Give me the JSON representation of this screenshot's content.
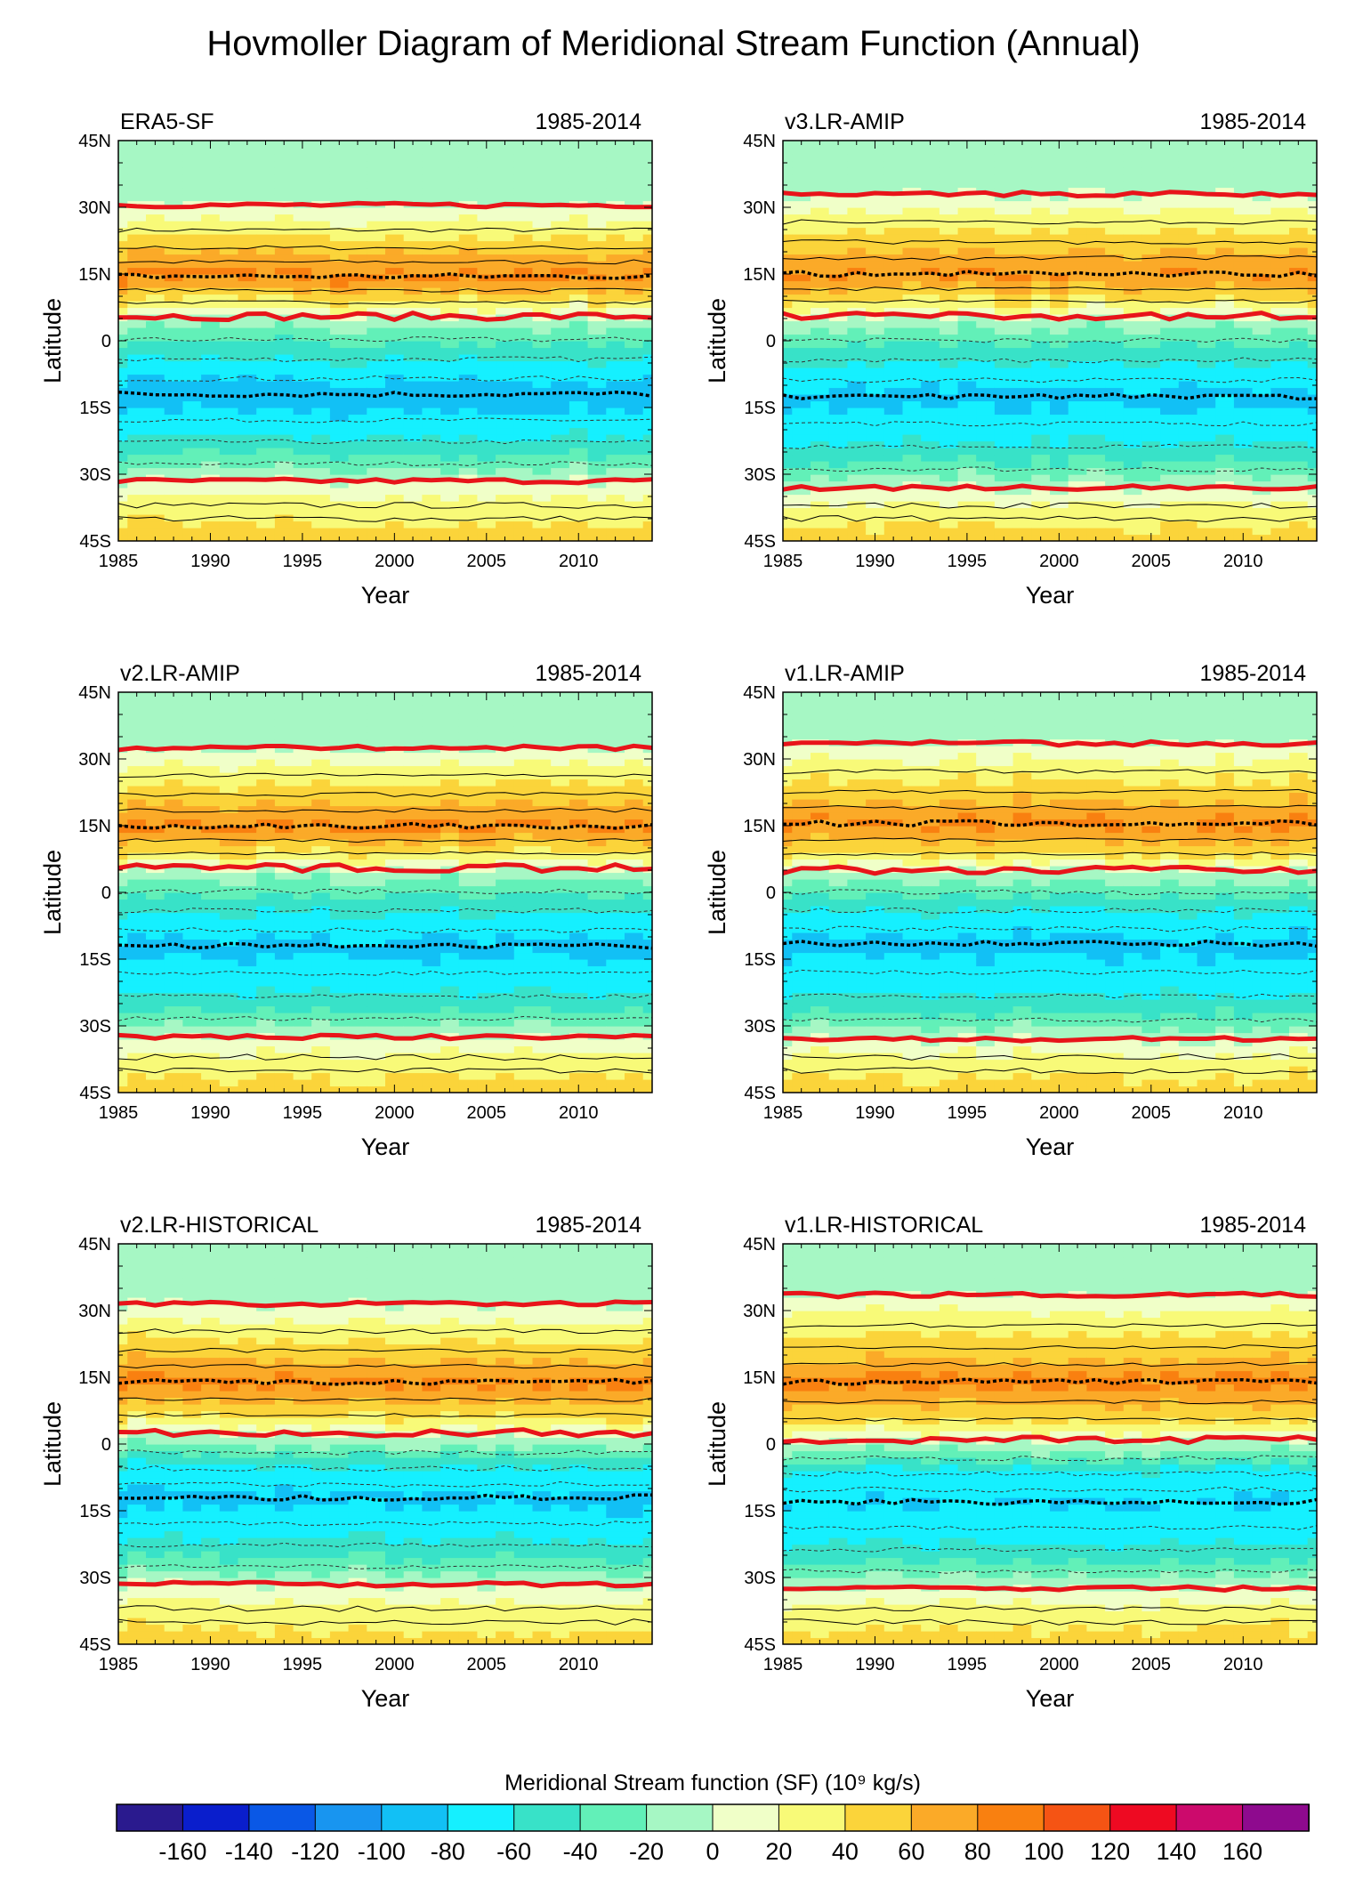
{
  "title": "Hovmoller Diagram of Meridional Stream Function (Annual)",
  "chart_data": {
    "type": "heatmap",
    "xlabel": "Year",
    "ylabel": "Latitude",
    "xlim": [
      1985,
      2014
    ],
    "ylim": [
      -45,
      45
    ],
    "xticks": [
      "1985",
      "1990",
      "1995",
      "2000",
      "2005",
      "2010"
    ],
    "xtick_values": [
      1985,
      1990,
      1995,
      2000,
      2005,
      2010
    ],
    "yticks": [
      "45N",
      "30N",
      "15N",
      "0",
      "15S",
      "30S",
      "45S"
    ],
    "ytick_values": [
      45,
      30,
      15,
      0,
      -15,
      -30,
      -45
    ],
    "panels": [
      {
        "name": "ERA5-SF",
        "period": "1985-2014",
        "hadley_north_edge": 30.5,
        "itcz": 5.5,
        "hadley_south_edge": -31.5,
        "north_cell_center": 14.5,
        "south_cell_center": -12,
        "north_max": 85,
        "south_min": -92
      },
      {
        "name": "v3.LR-AMIP",
        "period": "1985-2014",
        "hadley_north_edge": 33,
        "itcz": 5.5,
        "hadley_south_edge": -33,
        "north_cell_center": 15,
        "south_cell_center": -12.5,
        "north_max": 82,
        "south_min": -86
      },
      {
        "name": "v2.LR-AMIP",
        "period": "1985-2014",
        "hadley_north_edge": 32.5,
        "itcz": 5.5,
        "hadley_south_edge": -32.5,
        "north_cell_center": 15,
        "south_cell_center": -12,
        "north_max": 84,
        "south_min": -86
      },
      {
        "name": "v1.LR-AMIP",
        "period": "1985-2014",
        "hadley_north_edge": 33.5,
        "itcz": 5,
        "hadley_south_edge": -33,
        "north_cell_center": 15.5,
        "south_cell_center": -11.5,
        "north_max": 84,
        "south_min": -86
      },
      {
        "name": "v2.LR-HISTORICAL",
        "period": "1985-2014",
        "hadley_north_edge": 31.5,
        "itcz": 2.5,
        "hadley_south_edge": -31.5,
        "north_cell_center": 14,
        "south_cell_center": -12,
        "north_max": 86,
        "south_min": -86
      },
      {
        "name": "v1.LR-HISTORICAL",
        "period": "1985-2014",
        "hadley_north_edge": 33.5,
        "itcz": 1,
        "hadley_south_edge": -32.5,
        "north_cell_center": 14,
        "south_cell_center": -13,
        "north_max": 88,
        "south_min": -82
      }
    ],
    "colorbar": {
      "label": "Meridional Stream function (SF) (10⁹ kg/s)",
      "ticks": [
        "-160",
        "-140",
        "-120",
        "-100",
        "-80",
        "-60",
        "-40",
        "-20",
        "0",
        "20",
        "40",
        "60",
        "80",
        "100",
        "120",
        "140",
        "160"
      ],
      "colors": [
        "#2a1a8e",
        "#0a1ecc",
        "#0a58e6",
        "#1895f0",
        "#12c0f5",
        "#15f0ff",
        "#38e2c8",
        "#62f0b8",
        "#a6f7c4",
        "#f0ffc8",
        "#f8fa78",
        "#fbd43a",
        "#fbaa28",
        "#f98010",
        "#f55414",
        "#ee0a22",
        "#cc0a6c",
        "#8e0a8e"
      ]
    }
  }
}
